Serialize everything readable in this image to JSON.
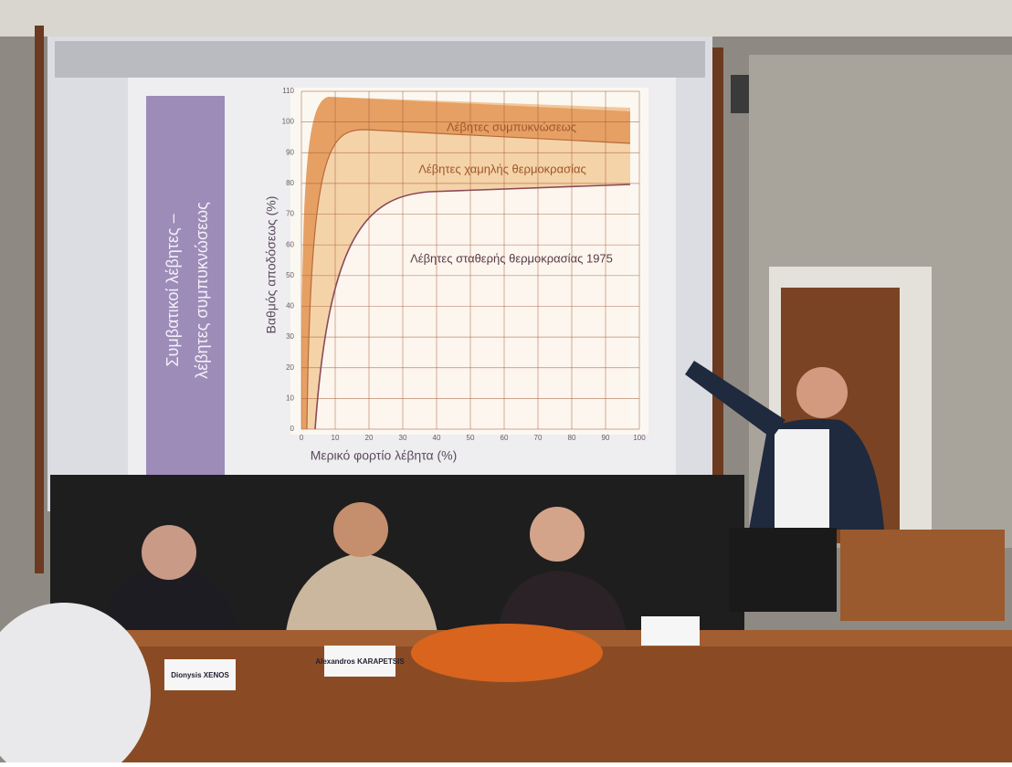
{
  "slide": {
    "sidebar_title": "Συμβατικοί λέβητες –",
    "sidebar_subtitle": "λέβητες συμπυκνώσεως",
    "y_axis_label": "Βαθμός αποδόσεως (%)",
    "x_axis_label": "Μερικό φορτίο λέβητα (%)",
    "curve_labels": [
      "Λέβητες συμπυκνώσεως",
      "Λέβητες χαμηλής θερμοκρασίας",
      "Λέβητες σταθερής θερμοκρασίας 1975"
    ],
    "yticks": [
      0,
      10,
      20,
      30,
      40,
      50,
      60,
      70,
      80,
      90,
      100,
      110
    ],
    "xticks": [
      0,
      10,
      20,
      30,
      40,
      50,
      60,
      70,
      80,
      90,
      100
    ]
  },
  "nameplates": [
    "Dionysis XENOS",
    "Alexandros KARAPETSIS"
  ]
}
